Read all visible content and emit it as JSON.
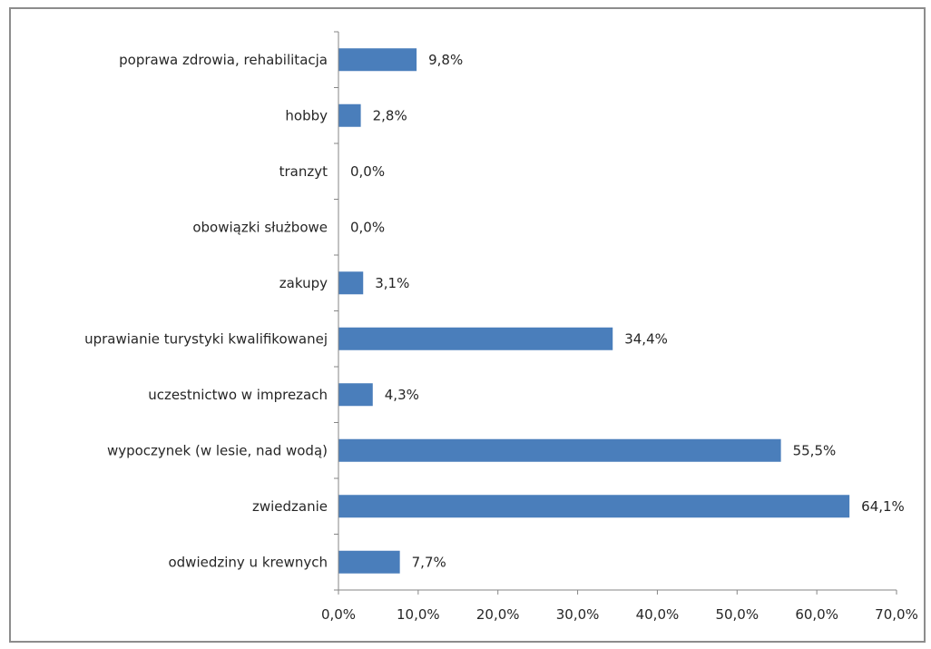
{
  "chart_data": {
    "type": "bar",
    "orientation": "horizontal",
    "title": "",
    "xlabel": "",
    "ylabel": "",
    "categories": [
      "poprawa zdrowia, rehabilitacja",
      "hobby",
      "tranzyt",
      "obowiązki służbowe",
      "zakupy",
      "uprawianie turystyki kwalifikowanej",
      "uczestnictwo w imprezach",
      "wypoczynek (w lesie, nad wodą)",
      "zwiedzanie",
      "odwiedziny u krewnych"
    ],
    "values": [
      9.8,
      2.8,
      0.0,
      0.0,
      3.1,
      34.4,
      4.3,
      55.5,
      64.1,
      7.7
    ],
    "value_labels": [
      "9,8%",
      "2,8%",
      "0,0%",
      "0,0%",
      "3,1%",
      "34,4%",
      "4,3%",
      "55,5%",
      "64,1%",
      "7,7%"
    ],
    "xlim": [
      0,
      70
    ],
    "xticks": [
      0,
      10,
      20,
      30,
      40,
      50,
      60,
      70
    ],
    "xtick_labels": [
      "0,0%",
      "10,0%",
      "20,0%",
      "30,0%",
      "40,0%",
      "50,0%",
      "60,0%",
      "70,0%"
    ],
    "grid": false,
    "legend": "none",
    "bar_color": "#4a7ebb",
    "axis_color": "#868686"
  }
}
